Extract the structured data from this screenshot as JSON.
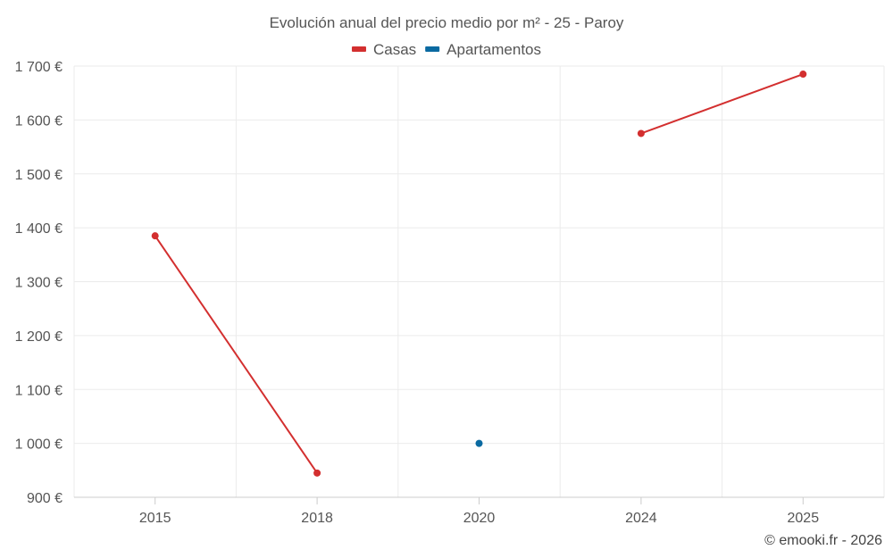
{
  "chart_data": {
    "type": "line",
    "title": "Evolución anual del precio medio por m² - 25 - Paroy",
    "categories": [
      "2015",
      "2018",
      "2020",
      "2024",
      "2025"
    ],
    "ylim": [
      900,
      1700
    ],
    "y_ticks": [
      900,
      1000,
      1100,
      1200,
      1300,
      1400,
      1500,
      1600,
      1700
    ],
    "y_tick_labels": [
      "900 €",
      "1 000 €",
      "1 100 €",
      "1 200 €",
      "1 300 €",
      "1 400 €",
      "1 500 €",
      "1 600 €",
      "1 700 €"
    ],
    "legend_position": "top-center",
    "grid": true,
    "series": [
      {
        "name": "Casas",
        "color": "#d32f2f",
        "values": [
          1385,
          945,
          null,
          1575,
          1685
        ]
      },
      {
        "name": "Apartamentos",
        "color": "#0a6aa1",
        "values": [
          null,
          null,
          1000,
          null,
          null
        ]
      }
    ]
  },
  "credit": "© emooki.fr - 2026"
}
